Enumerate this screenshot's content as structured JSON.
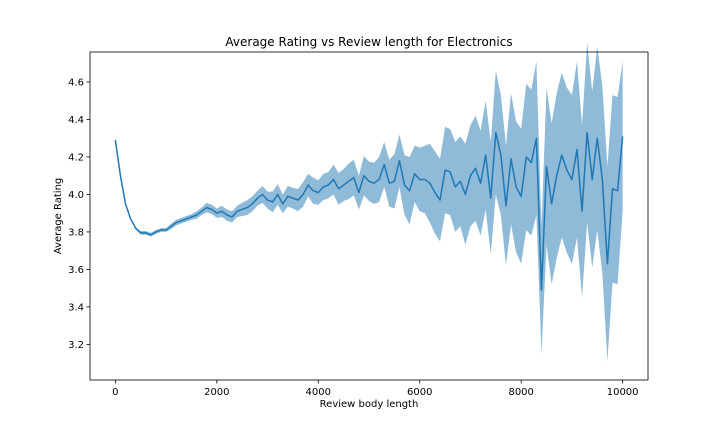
{
  "chart_data": {
    "type": "line",
    "title": "Average Rating vs Review length for Electronics",
    "xlabel": "Review body length",
    "ylabel": "Average Rating",
    "xlim": [
      -500,
      10500
    ],
    "ylim": [
      3.01,
      4.76
    ],
    "xticks": [
      0,
      2000,
      4000,
      6000,
      8000,
      10000
    ],
    "xtick_labels": [
      "0",
      "2000",
      "4000",
      "6000",
      "8000",
      "10000"
    ],
    "yticks": [
      3.2,
      3.4,
      3.6,
      3.8,
      4.0,
      4.2,
      4.4,
      4.6
    ],
    "ytick_labels": [
      "3.2",
      "3.4",
      "3.6",
      "3.8",
      "4.0",
      "4.2",
      "4.4",
      "4.6"
    ],
    "grid": false,
    "colors": {
      "line": "#1f77b4",
      "band": "#1f77b4",
      "axes": "#000000"
    },
    "series": [
      {
        "x": [
          0,
          100,
          200,
          300,
          400,
          500,
          600,
          700,
          800,
          900,
          1000,
          1100,
          1200,
          1300,
          1400,
          1500,
          1600,
          1700,
          1800,
          1900,
          2000,
          2100,
          2200,
          2300,
          2400,
          2500,
          2600,
          2700,
          2800,
          2900,
          3000,
          3100,
          3200,
          3300,
          3400,
          3500,
          3600,
          3700,
          3800,
          3900,
          4000,
          4100,
          4200,
          4300,
          4400,
          4500,
          4600,
          4700,
          4800,
          4900,
          5000,
          5100,
          5200,
          5300,
          5400,
          5500,
          5600,
          5700,
          5800,
          5900,
          6000,
          6100,
          6200,
          6300,
          6400,
          6500,
          6600,
          6700,
          6800,
          6900,
          7000,
          7100,
          7200,
          7300,
          7400,
          7500,
          7600,
          7700,
          7800,
          7900,
          8000,
          8100,
          8200,
          8300,
          8400,
          8500,
          8600,
          8700,
          8800,
          8900,
          9000,
          9100,
          9200,
          9300,
          9400,
          9500,
          9600,
          9700,
          9800,
          9900,
          10000
        ],
        "y": [
          4.29,
          4.1,
          3.95,
          3.87,
          3.82,
          3.795,
          3.795,
          3.785,
          3.8,
          3.81,
          3.81,
          3.83,
          3.85,
          3.86,
          3.87,
          3.88,
          3.89,
          3.91,
          3.93,
          3.92,
          3.9,
          3.91,
          3.89,
          3.88,
          3.91,
          3.92,
          3.93,
          3.95,
          3.98,
          4.0,
          3.97,
          3.96,
          4.0,
          3.95,
          3.99,
          3.98,
          3.97,
          4.0,
          4.05,
          4.02,
          4.01,
          4.04,
          4.05,
          4.08,
          4.03,
          4.05,
          4.07,
          4.09,
          4.01,
          4.1,
          4.07,
          4.06,
          4.08,
          4.16,
          4.06,
          4.07,
          4.18,
          4.05,
          4.02,
          4.11,
          4.08,
          4.08,
          4.06,
          4.01,
          3.97,
          4.13,
          4.12,
          4.04,
          4.07,
          4.0,
          4.1,
          4.14,
          4.06,
          4.21,
          3.98,
          4.33,
          4.21,
          3.94,
          4.19,
          4.04,
          3.99,
          4.2,
          4.17,
          4.3,
          3.49,
          4.15,
          3.95,
          4.1,
          4.21,
          4.13,
          4.08,
          4.24,
          3.91,
          4.33,
          4.08,
          4.3,
          4.08,
          3.63,
          4.03,
          4.02,
          4.31
        ],
        "lower": [
          4.29,
          4.1,
          3.95,
          3.87,
          3.815,
          3.785,
          3.785,
          3.775,
          3.79,
          3.8,
          3.8,
          3.815,
          3.835,
          3.845,
          3.855,
          3.865,
          3.87,
          3.89,
          3.905,
          3.895,
          3.875,
          3.88,
          3.86,
          3.85,
          3.88,
          3.885,
          3.89,
          3.91,
          3.94,
          3.955,
          3.925,
          3.905,
          3.945,
          3.9,
          3.935,
          3.925,
          3.91,
          3.935,
          3.99,
          3.95,
          3.945,
          3.97,
          3.98,
          4.0,
          3.945,
          3.965,
          3.975,
          3.995,
          3.92,
          3.995,
          3.965,
          3.95,
          3.96,
          4.04,
          3.935,
          3.925,
          4.04,
          3.89,
          3.84,
          3.96,
          3.91,
          3.9,
          3.85,
          3.79,
          3.75,
          3.9,
          3.89,
          3.8,
          3.83,
          3.73,
          3.83,
          3.86,
          3.78,
          3.92,
          3.68,
          4.0,
          3.89,
          3.62,
          3.84,
          3.69,
          3.63,
          3.81,
          3.78,
          3.89,
          3.15,
          3.73,
          3.52,
          3.66,
          3.77,
          3.69,
          3.63,
          3.77,
          3.45,
          3.85,
          3.61,
          3.81,
          3.58,
          3.11,
          3.53,
          3.52,
          3.91
        ],
        "upper": [
          4.29,
          4.1,
          3.95,
          3.87,
          3.825,
          3.805,
          3.805,
          3.795,
          3.81,
          3.82,
          3.82,
          3.845,
          3.865,
          3.875,
          3.885,
          3.895,
          3.91,
          3.93,
          3.955,
          3.945,
          3.925,
          3.94,
          3.92,
          3.91,
          3.94,
          3.955,
          3.97,
          3.99,
          4.02,
          4.045,
          4.015,
          4.015,
          4.055,
          4.0,
          4.045,
          4.035,
          4.03,
          4.065,
          4.11,
          4.09,
          4.075,
          4.11,
          4.12,
          4.16,
          4.115,
          4.135,
          4.165,
          4.185,
          4.1,
          4.205,
          4.175,
          4.17,
          4.2,
          4.28,
          4.185,
          4.215,
          4.32,
          4.21,
          4.2,
          4.26,
          4.25,
          4.26,
          4.27,
          4.23,
          4.19,
          4.36,
          4.35,
          4.28,
          4.31,
          4.27,
          4.37,
          4.42,
          4.34,
          4.5,
          4.28,
          4.66,
          4.53,
          4.26,
          4.54,
          4.39,
          4.35,
          4.59,
          4.56,
          4.71,
          3.83,
          4.57,
          4.38,
          4.54,
          4.65,
          4.57,
          4.53,
          4.71,
          4.37,
          4.81,
          4.55,
          4.79,
          4.58,
          4.15,
          4.53,
          4.52,
          4.71
        ]
      }
    ]
  }
}
